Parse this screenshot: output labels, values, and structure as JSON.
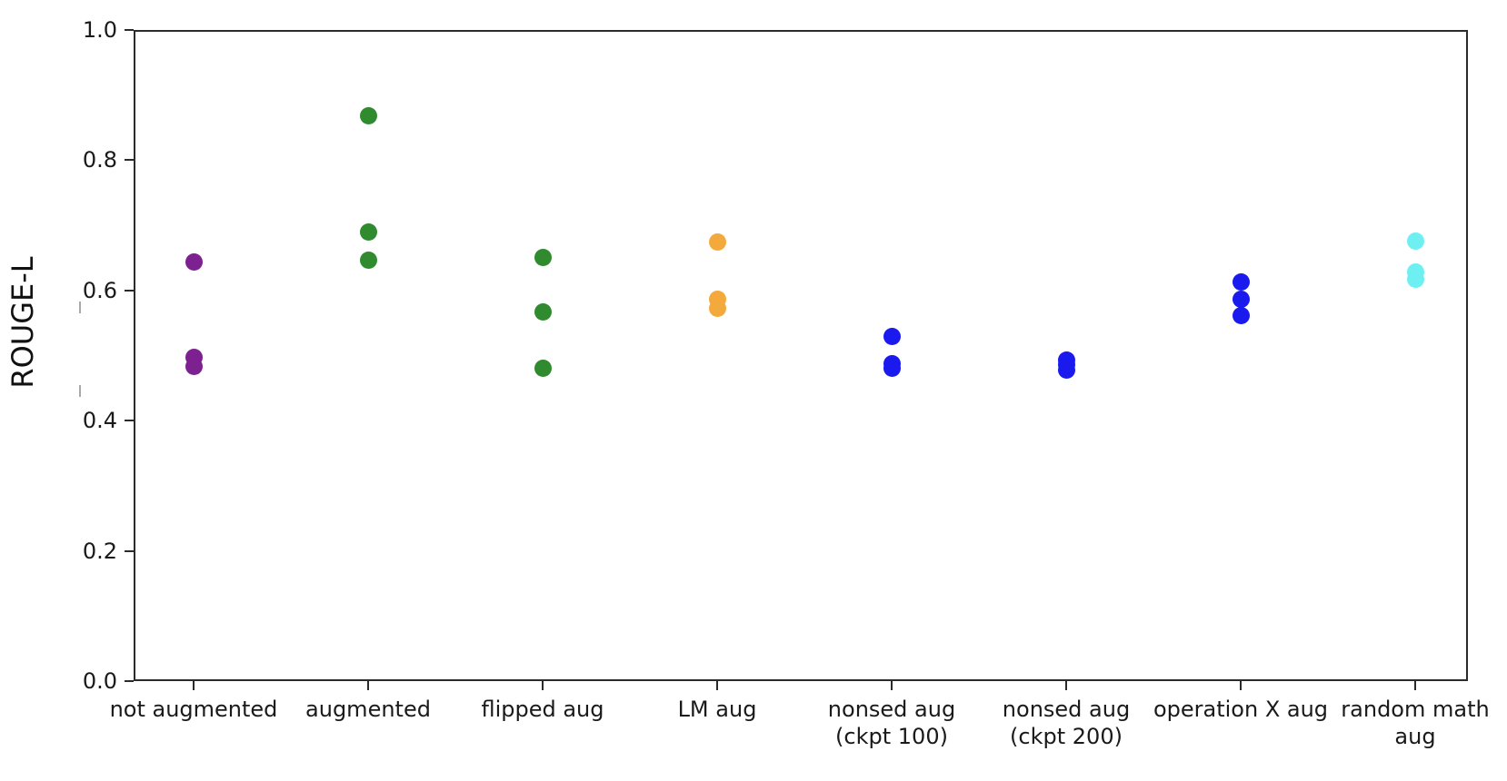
{
  "figure": {
    "background": "#ffffff",
    "spine_color": "#2b2b2b",
    "text_color": "#1a1a1a"
  },
  "chart_data": {
    "type": "scatter",
    "subtype": "categorical-strip-plot",
    "title": "",
    "xlabel": "",
    "ylabel": "ROUGE-L",
    "ylim": [
      0.0,
      1.0
    ],
    "yticks": [
      {
        "value": 0.0,
        "label": "0.0"
      },
      {
        "value": 0.2,
        "label": "0.2"
      },
      {
        "value": 0.4,
        "label": "0.4"
      },
      {
        "value": 0.6,
        "label": "0.6"
      },
      {
        "value": 0.8,
        "label": "0.8"
      },
      {
        "value": 1.0,
        "label": "1.0"
      }
    ],
    "grid": false,
    "legend": null,
    "series": [
      {
        "label": "not augmented",
        "color": "#7d2190",
        "values": [
          0.643,
          0.497,
          0.483
        ]
      },
      {
        "label": "augmented",
        "color": "#2f8b2e",
        "values": [
          0.868,
          0.689,
          0.646
        ]
      },
      {
        "label": "flipped aug",
        "color": "#2f8b2e",
        "values": [
          0.651,
          0.567,
          0.481
        ]
      },
      {
        "label": "LM aug",
        "color": "#f4a93d",
        "values": [
          0.674,
          0.587,
          0.572
        ]
      },
      {
        "label": "nonsed aug\n(ckpt 100)",
        "color": "#1a1aee",
        "values": [
          0.529,
          0.487,
          0.481
        ]
      },
      {
        "label": "nonsed aug\n(ckpt 200)",
        "color": "#1a1aee",
        "values": [
          0.493,
          0.486,
          0.478
        ]
      },
      {
        "label": "operation X aug",
        "color": "#1a1aee",
        "values": [
          0.613,
          0.586,
          0.561
        ]
      },
      {
        "label": "random math\naug",
        "color": "#6ef0f2",
        "values": [
          0.676,
          0.628,
          0.617
        ]
      }
    ]
  }
}
